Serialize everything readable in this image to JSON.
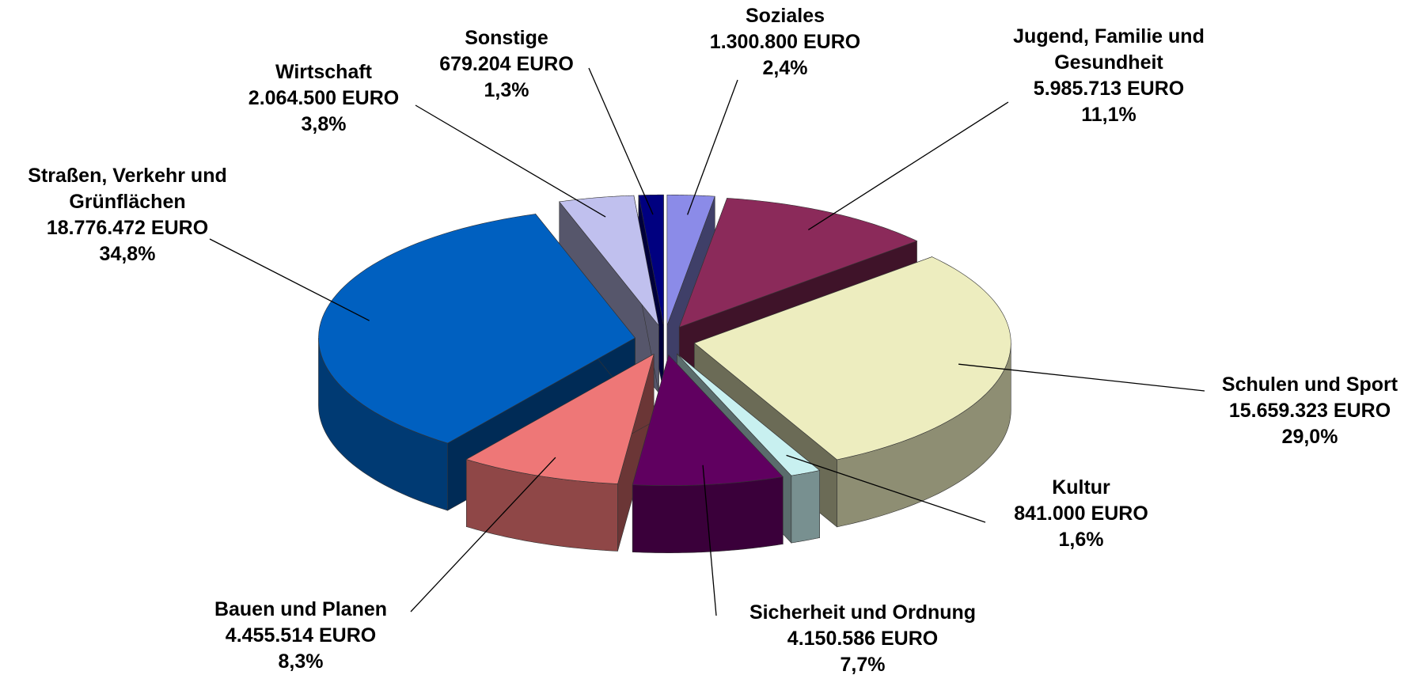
{
  "chart_data": {
    "type": "pie3d",
    "categories": [
      "Soziales",
      "Jugend, Familie und Gesundheit",
      "Schulen und Sport",
      "Kultur",
      "Sicherheit und Ordnung",
      "Bauen und Planen",
      "Straßen, Verkehr und Grünflächen",
      "Wirtschaft",
      "Sonstige"
    ],
    "values": [
      1300800,
      5985713,
      15659323,
      841000,
      4150586,
      4455514,
      18776472,
      2064500,
      679204
    ],
    "value_labels": [
      "1.300.800 EURO",
      "5.985.713 EURO",
      "15.659.323 EURO",
      "841.000 EURO",
      "4.150.586 EURO",
      "4.455.514 EURO",
      "18.776.472 EURO",
      "2.064.500 EURO",
      "679.204 EURO"
    ],
    "percents": [
      2.4,
      11.1,
      29.0,
      1.6,
      7.7,
      8.3,
      34.8,
      3.8,
      1.3
    ],
    "percent_labels": [
      "2,4%",
      "11,1%",
      "29,0%",
      "1,6%",
      "7,7%",
      "8,3%",
      "34,8%",
      "3,8%",
      "1,3%"
    ],
    "colors": [
      "#8b8be8",
      "#8b2a5a",
      "#ededbf",
      "#c8f0f0",
      "#600060",
      "#ee7777",
      "#0060c0",
      "#c0c0ee",
      "#000080"
    ]
  }
}
